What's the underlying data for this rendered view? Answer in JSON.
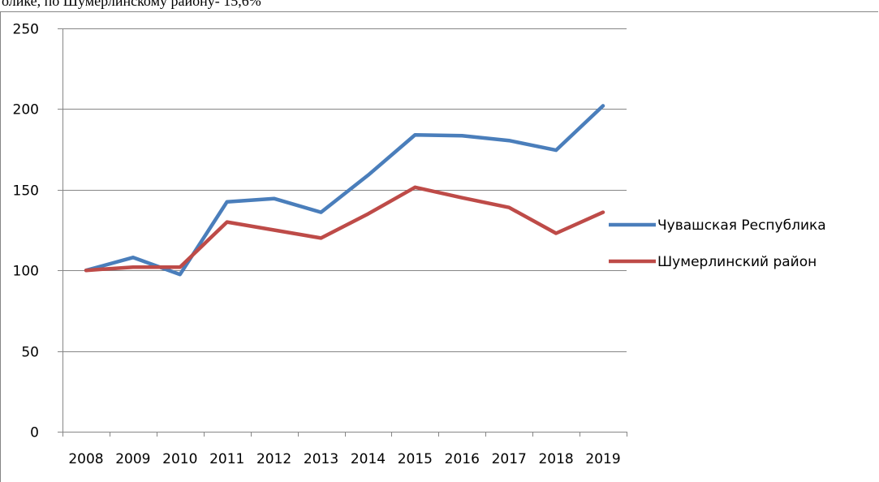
{
  "page": {
    "header_fragment": "олике, по Шумерлинскому району- 15,6%"
  },
  "chart_data": {
    "type": "line",
    "title": "",
    "xlabel": "",
    "ylabel": "",
    "categories": [
      "2008",
      "2009",
      "2010",
      "2011",
      "2012",
      "2013",
      "2014",
      "2015",
      "2016",
      "2017",
      "2018",
      "2019"
    ],
    "ylim": [
      0,
      250
    ],
    "yticks": [
      0,
      50,
      100,
      150,
      200,
      250
    ],
    "grid": "horizontal",
    "legend_position": "right",
    "series": [
      {
        "name": "Чувашская Республика",
        "color": "#4a7ebb",
        "values": [
          100,
          108,
          97.5,
          142.5,
          144.5,
          136,
          159,
          184,
          183.5,
          180.5,
          174.5,
          202
        ]
      },
      {
        "name": "Шумерлинский район",
        "color": "#be4b48",
        "values": [
          100,
          102,
          102,
          130,
          125,
          120,
          135,
          151.5,
          145,
          139,
          123,
          136
        ]
      }
    ]
  }
}
